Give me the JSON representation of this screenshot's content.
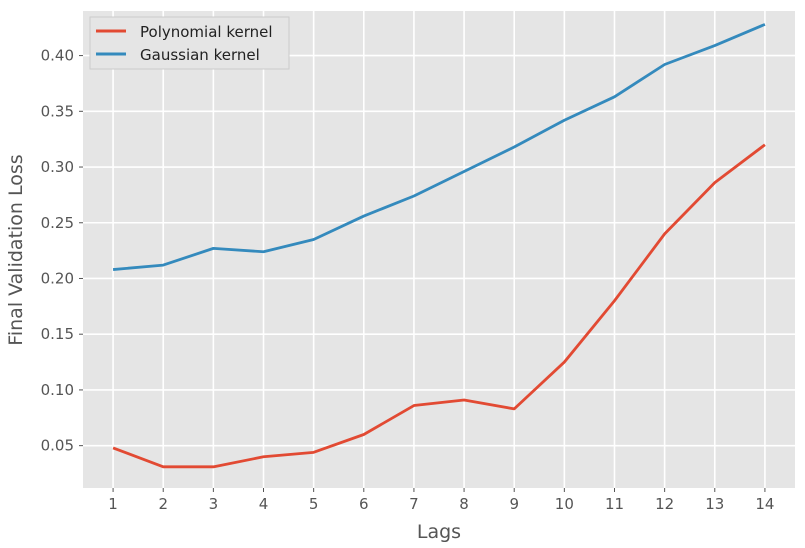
{
  "chart_data": {
    "type": "line",
    "xlabel": "Lags",
    "ylabel": "Final Validation Loss",
    "x": [
      1,
      2,
      3,
      4,
      5,
      6,
      7,
      8,
      9,
      10,
      11,
      12,
      13,
      14
    ],
    "ylim": [
      0.012,
      0.44
    ],
    "yticks": [
      "0.05",
      "0.10",
      "0.15",
      "0.20",
      "0.25",
      "0.30",
      "0.35",
      "0.40"
    ],
    "grid": true,
    "legend_position": "top-left",
    "series": [
      {
        "name": "Polynomial kernel",
        "color": "#E24A33",
        "values": [
          0.048,
          0.031,
          0.031,
          0.04,
          0.044,
          0.06,
          0.086,
          0.091,
          0.083,
          0.125,
          0.18,
          0.24,
          0.286,
          0.32
        ]
      },
      {
        "name": "Gaussian kernel",
        "color": "#348ABD",
        "values": [
          0.208,
          0.212,
          0.227,
          0.224,
          0.235,
          0.256,
          0.274,
          0.296,
          0.318,
          0.342,
          0.363,
          0.392,
          0.409,
          0.428
        ]
      }
    ]
  },
  "colors": {
    "plot_background": "#E5E5E5",
    "grid": "#FFFFFF",
    "text": "#555555"
  }
}
